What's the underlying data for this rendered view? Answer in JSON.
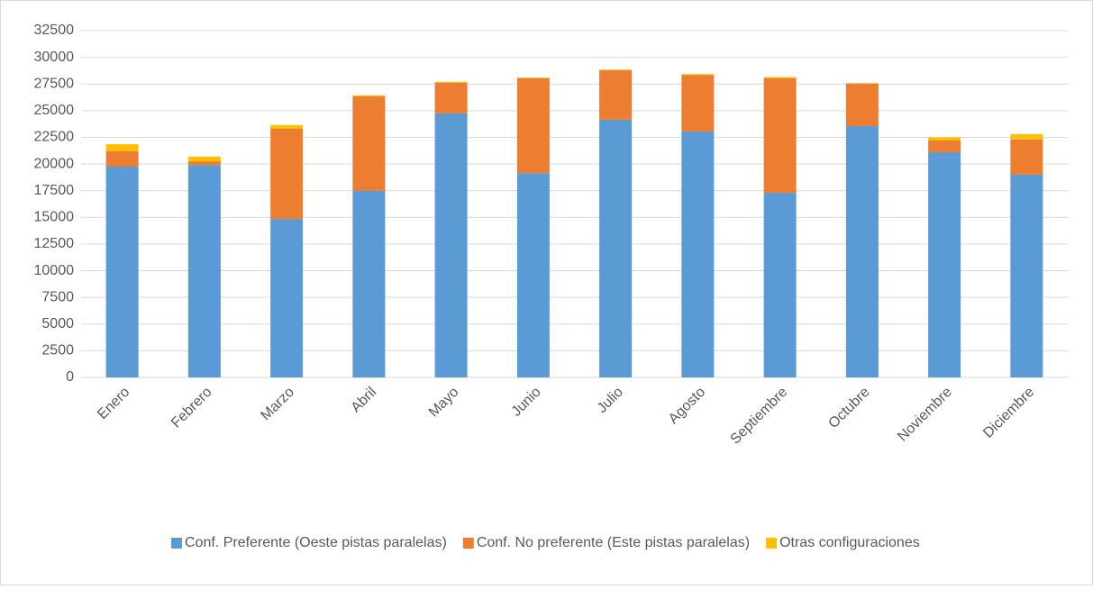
{
  "chart_data": {
    "type": "stacked_bar",
    "categories": [
      "Enero",
      "Febrero",
      "Marzo",
      "Abril",
      "Mayo",
      "Junio",
      "Julio",
      "Agosto",
      "Septiembre",
      "Octubre",
      "Noviembre",
      "Diciembre"
    ],
    "series": [
      {
        "name": "Conf. Preferente (Oeste pistas paralelas)",
        "color": "#5b9bd5",
        "values": [
          19750,
          19900,
          14850,
          17500,
          24750,
          19150,
          24150,
          23050,
          17300,
          23550,
          21100,
          19000
        ]
      },
      {
        "name": "Conf. No preferente (Este pistas paralelas)",
        "color": "#ed7d31",
        "values": [
          1450,
          350,
          8450,
          8850,
          2850,
          8900,
          4650,
          5300,
          10750,
          4000,
          1100,
          3300
        ]
      },
      {
        "name": "Otras configuraciones",
        "color": "#ffc000",
        "values": [
          650,
          450,
          350,
          100,
          100,
          50,
          50,
          80,
          100,
          30,
          300,
          500
        ]
      }
    ],
    "ylim": [
      0,
      32500
    ],
    "yticks": [
      0,
      2500,
      5000,
      7500,
      10000,
      12500,
      15000,
      17500,
      20000,
      22500,
      25000,
      27500,
      30000,
      32500
    ],
    "grid": true,
    "legend": "bottom"
  }
}
